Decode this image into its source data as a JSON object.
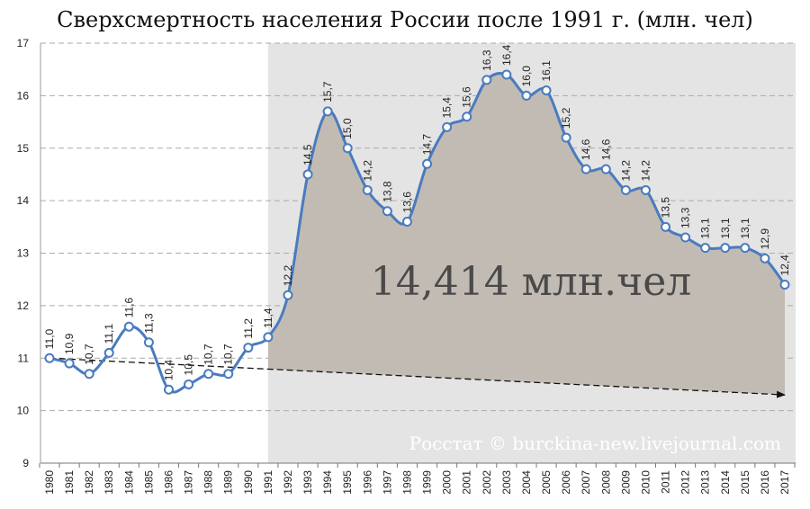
{
  "chart_data": {
    "type": "line",
    "title": "Сверхсмертность населения России после 1991 г. (млн. чел)",
    "x": [
      "1980",
      "1981",
      "1982",
      "1983",
      "1984",
      "1985",
      "1986",
      "1987",
      "1988",
      "1989",
      "1990",
      "1991",
      "1992",
      "1993",
      "1994",
      "1995",
      "1996",
      "1997",
      "1998",
      "1999",
      "2000",
      "2001",
      "2002",
      "2003",
      "2004",
      "2005",
      "2006",
      "2007",
      "2008",
      "2009",
      "2010",
      "2011",
      "2012",
      "2013",
      "2014",
      "2015",
      "2016",
      "2017"
    ],
    "values": [
      11.0,
      10.9,
      10.7,
      11.1,
      11.6,
      11.3,
      10.4,
      10.5,
      10.7,
      10.7,
      11.2,
      11.4,
      12.2,
      14.5,
      15.7,
      15.0,
      14.2,
      13.8,
      13.6,
      14.7,
      15.4,
      15.6,
      16.3,
      16.4,
      16.0,
      16.1,
      15.2,
      14.6,
      14.6,
      14.2,
      14.2,
      13.5,
      13.3,
      13.1,
      13.1,
      13.1,
      12.9,
      12.4
    ],
    "data_labels": [
      "11,0",
      "10,9",
      "10,7",
      "11,1",
      "11,6",
      "11,3",
      "10,4",
      "10,5",
      "10,7",
      "10,7",
      "11,2",
      "11,4",
      "12,2",
      "14,5",
      "15,7",
      "15,0",
      "14,2",
      "13,8",
      "13,6",
      "14,7",
      "15,4",
      "15,6",
      "16,3",
      "16,4",
      "16,0",
      "16,1",
      "15,2",
      "14,6",
      "14,6",
      "14,2",
      "14,2",
      "13,5",
      "13,3",
      "13,1",
      "13,1",
      "13,1",
      "12,9",
      "12,4"
    ],
    "yticks": [
      "9",
      "10",
      "11",
      "12",
      "13",
      "14",
      "15",
      "16",
      "17"
    ],
    "ylim": [
      9,
      17
    ],
    "grid": true,
    "shaded_from": "1991",
    "trend_line": {
      "start": [
        "1980",
        11.0
      ],
      "end": [
        "2017",
        10.3
      ]
    },
    "annotation": "14,414 млн.чел",
    "watermark": "Росстат © burckina-new.livejournal.com",
    "colors": {
      "line": "#4a7bbf",
      "marker_fill": "#ffffff",
      "shaded_bg": "#e4e4e4",
      "area_fill": "#c2bbb3",
      "grid": "#aaaaaa",
      "trend": "#111111"
    }
  }
}
